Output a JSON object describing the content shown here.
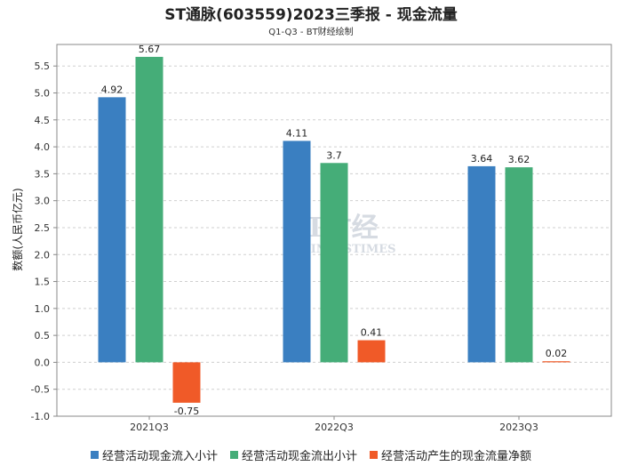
{
  "chart_data": {
    "type": "bar",
    "title": "ST通脉(603559)2023三季报 - 现金流量",
    "subtitle": "Q1-Q3 - BT财经绘制",
    "ylabel": "数额(人民币亿元)",
    "xlabel": "",
    "ylim": [
      -1.0,
      5.9
    ],
    "yticks": [
      "-1.0",
      "-0.5",
      "0.0",
      "0.5",
      "1.0",
      "1.5",
      "2.0",
      "2.5",
      "3.0",
      "3.5",
      "4.0",
      "4.5",
      "5.0",
      "5.5"
    ],
    "categories": [
      "2021Q3",
      "2022Q3",
      "2023Q3"
    ],
    "series": [
      {
        "name": "经营活动现金流入小计",
        "color": "#3a7fc1",
        "values": [
          4.92,
          4.11,
          3.64
        ]
      },
      {
        "name": "经营活动现金流出小计",
        "color": "#45ad78",
        "values": [
          5.67,
          3.7,
          3.62
        ]
      },
      {
        "name": "经营活动产生的现金流量净额",
        "color": "#f05a28",
        "values": [
          -0.75,
          0.41,
          0.02
        ]
      }
    ],
    "grid": true,
    "legend_position": "bottom"
  },
  "watermark": {
    "brand": "BT财经",
    "tagline": "BUSINESSTIMES"
  }
}
